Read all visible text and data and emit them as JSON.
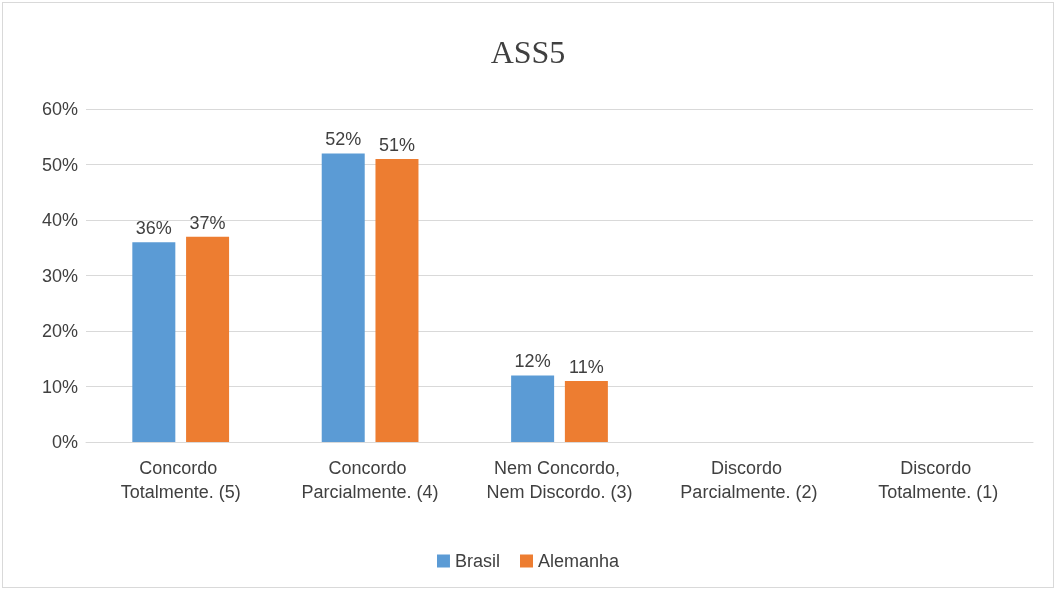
{
  "chart_data": {
    "type": "bar",
    "title": "ASS5",
    "categories": [
      "Concordo Totalmente. (5)",
      "Concordo Parcialmente. (4)",
      "Nem Concordo, Nem Discordo. (3)",
      "Discordo Parcialmente. (2)",
      "Discordo Totalmente. (1)"
    ],
    "series": [
      {
        "name": "Brasil",
        "color": "#5b9bd5",
        "values": [
          36,
          52,
          12,
          0,
          0
        ],
        "value_labels": [
          "36%",
          "52%",
          "12%",
          null,
          null
        ]
      },
      {
        "name": "Alemanha",
        "color": "#ed7d31",
        "values": [
          37,
          51,
          11,
          0,
          0
        ],
        "value_labels": [
          "37%",
          "51%",
          "11%",
          null,
          null
        ]
      }
    ],
    "ylim": [
      0,
      60
    ],
    "yticks": [
      {
        "value": 0,
        "label": "0%"
      },
      {
        "value": 10,
        "label": "10%"
      },
      {
        "value": 20,
        "label": "20%"
      },
      {
        "value": 30,
        "label": "30%"
      },
      {
        "value": 40,
        "label": "40%"
      },
      {
        "value": 50,
        "label": "50%"
      },
      {
        "value": 60,
        "label": "60%"
      }
    ],
    "grid": "y",
    "legend": "bottom"
  }
}
